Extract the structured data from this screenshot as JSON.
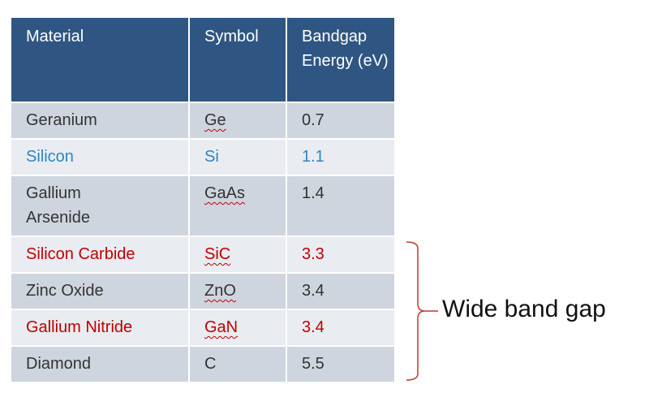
{
  "table": {
    "header": [
      "Material",
      "Symbol",
      "Bandgap Energy (eV)"
    ],
    "rows": [
      [
        "Geranium",
        "Ge",
        "0.7"
      ],
      [
        "Silicon",
        "Si",
        "1.1"
      ],
      [
        "Gallium Arsenide",
        "GaAs",
        "1.4"
      ],
      [
        "Silicon Carbide",
        "SiC",
        "3.3"
      ],
      [
        "Zinc Oxide",
        "ZnO",
        "3.4"
      ],
      [
        "Gallium Nitride",
        "GaN",
        "3.4"
      ],
      [
        "Diamond",
        "C",
        "5.5"
      ]
    ]
  },
  "annotation": "Wide band gap"
}
